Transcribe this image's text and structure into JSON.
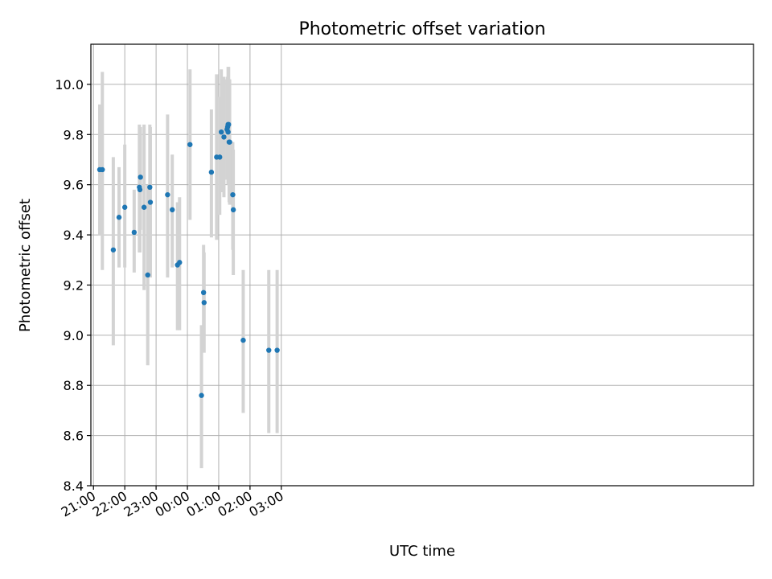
{
  "chart_data": {
    "type": "scatter",
    "title": "Photometric offset variation",
    "xlabel": "UTC time",
    "ylabel": "Photometric offset",
    "grid": true,
    "x_axis": {
      "type": "time",
      "range_minutes": [
        -5,
        1265
      ],
      "ticks": [
        {
          "minute": 0,
          "label": "21:00"
        },
        {
          "minute": 60,
          "label": "22:00"
        },
        {
          "minute": 120,
          "label": "23:00"
        },
        {
          "minute": 180,
          "label": "00:00"
        },
        {
          "minute": 240,
          "label": "01:00"
        },
        {
          "minute": 300,
          "label": "02:00"
        },
        {
          "minute": 360,
          "label": "03:00"
        }
      ]
    },
    "y_axis": {
      "range": [
        8.4,
        10.16
      ],
      "ticks": [
        8.4,
        8.6,
        8.8,
        9.0,
        9.2,
        9.4,
        9.6,
        9.8,
        10.0
      ],
      "tick_labels": [
        "8.4",
        "8.6",
        "8.8",
        "9.0",
        "9.2",
        "9.4",
        "9.6",
        "9.8",
        "10.0"
      ]
    },
    "series": [
      {
        "marker_color": "#1f77b4",
        "errorbar_color": "#d3d3d3",
        "points": [
          {
            "time": "21:12",
            "y": 9.66,
            "ylow": 9.4,
            "yhigh": 9.92
          },
          {
            "time": "21:17",
            "y": 9.66,
            "ylow": 9.26,
            "yhigh": 10.05
          },
          {
            "time": "21:38",
            "y": 9.34,
            "ylow": 8.96,
            "yhigh": 9.71
          },
          {
            "time": "21:49",
            "y": 9.47,
            "ylow": 9.27,
            "yhigh": 9.67
          },
          {
            "time": "22:00",
            "y": 9.51,
            "ylow": 9.27,
            "yhigh": 9.76
          },
          {
            "time": "22:18",
            "y": 9.41,
            "ylow": 9.25,
            "yhigh": 9.58
          },
          {
            "time": "22:28",
            "y": 9.59,
            "ylow": 9.33,
            "yhigh": 9.84
          },
          {
            "time": "22:29",
            "y": 9.58,
            "ylow": 9.33,
            "yhigh": 9.83
          },
          {
            "time": "22:30",
            "y": 9.63,
            "ylow": 9.42,
            "yhigh": 9.83
          },
          {
            "time": "22:37",
            "y": 9.51,
            "ylow": 9.18,
            "yhigh": 9.84
          },
          {
            "time": "22:44",
            "y": 9.24,
            "ylow": 8.88,
            "yhigh": 9.6
          },
          {
            "time": "22:48",
            "y": 9.59,
            "ylow": 9.34,
            "yhigh": 9.84
          },
          {
            "time": "22:49",
            "y": 9.53,
            "ylow": 9.23,
            "yhigh": 9.83
          },
          {
            "time": "23:22",
            "y": 9.56,
            "ylow": 9.23,
            "yhigh": 9.88
          },
          {
            "time": "23:31",
            "y": 9.5,
            "ylow": 9.27,
            "yhigh": 9.72
          },
          {
            "time": "23:41",
            "y": 9.28,
            "ylow": 9.02,
            "yhigh": 9.53
          },
          {
            "time": "23:45",
            "y": 9.29,
            "ylow": 9.02,
            "yhigh": 9.55
          },
          {
            "time": "00:05",
            "y": 9.76,
            "ylow": 9.46,
            "yhigh": 10.06
          },
          {
            "time": "00:27",
            "y": 8.76,
            "ylow": 8.47,
            "yhigh": 9.04
          },
          {
            "time": "00:31",
            "y": 9.17,
            "ylow": 8.99,
            "yhigh": 9.36
          },
          {
            "time": "00:32",
            "y": 9.13,
            "ylow": 8.93,
            "yhigh": 9.33
          },
          {
            "time": "00:46",
            "y": 9.65,
            "ylow": 9.39,
            "yhigh": 9.9
          },
          {
            "time": "00:56",
            "y": 9.71,
            "ylow": 9.38,
            "yhigh": 10.04
          },
          {
            "time": "01:02",
            "y": 9.71,
            "ylow": 9.48,
            "yhigh": 9.95
          },
          {
            "time": "01:05",
            "y": 9.81,
            "ylow": 9.57,
            "yhigh": 10.06
          },
          {
            "time": "01:10",
            "y": 9.79,
            "ylow": 9.55,
            "yhigh": 10.03
          },
          {
            "time": "01:16",
            "y": 9.82,
            "ylow": 9.62,
            "yhigh": 10.02
          },
          {
            "time": "01:17",
            "y": 9.83,
            "ylow": 9.62,
            "yhigh": 10.03
          },
          {
            "time": "01:18",
            "y": 9.81,
            "ylow": 9.6,
            "yhigh": 10.02
          },
          {
            "time": "01:18",
            "y": 9.84,
            "ylow": 9.6,
            "yhigh": 10.07
          },
          {
            "time": "01:19",
            "y": 9.84,
            "ylow": 9.61,
            "yhigh": 10.07
          },
          {
            "time": "01:20",
            "y": 9.77,
            "ylow": 9.53,
            "yhigh": 10.02
          },
          {
            "time": "01:21",
            "y": 9.77,
            "ylow": 9.52,
            "yhigh": 10.02
          },
          {
            "time": "01:27",
            "y": 9.56,
            "ylow": 9.34,
            "yhigh": 9.77
          },
          {
            "time": "01:28",
            "y": 9.5,
            "ylow": 9.24,
            "yhigh": 9.74
          },
          {
            "time": "01:47",
            "y": 8.98,
            "ylow": 8.69,
            "yhigh": 9.26
          },
          {
            "time": "02:36",
            "y": 8.94,
            "ylow": 8.61,
            "yhigh": 9.26
          },
          {
            "time": "02:52",
            "y": 8.94,
            "ylow": 8.61,
            "yhigh": 9.26
          }
        ]
      }
    ]
  }
}
